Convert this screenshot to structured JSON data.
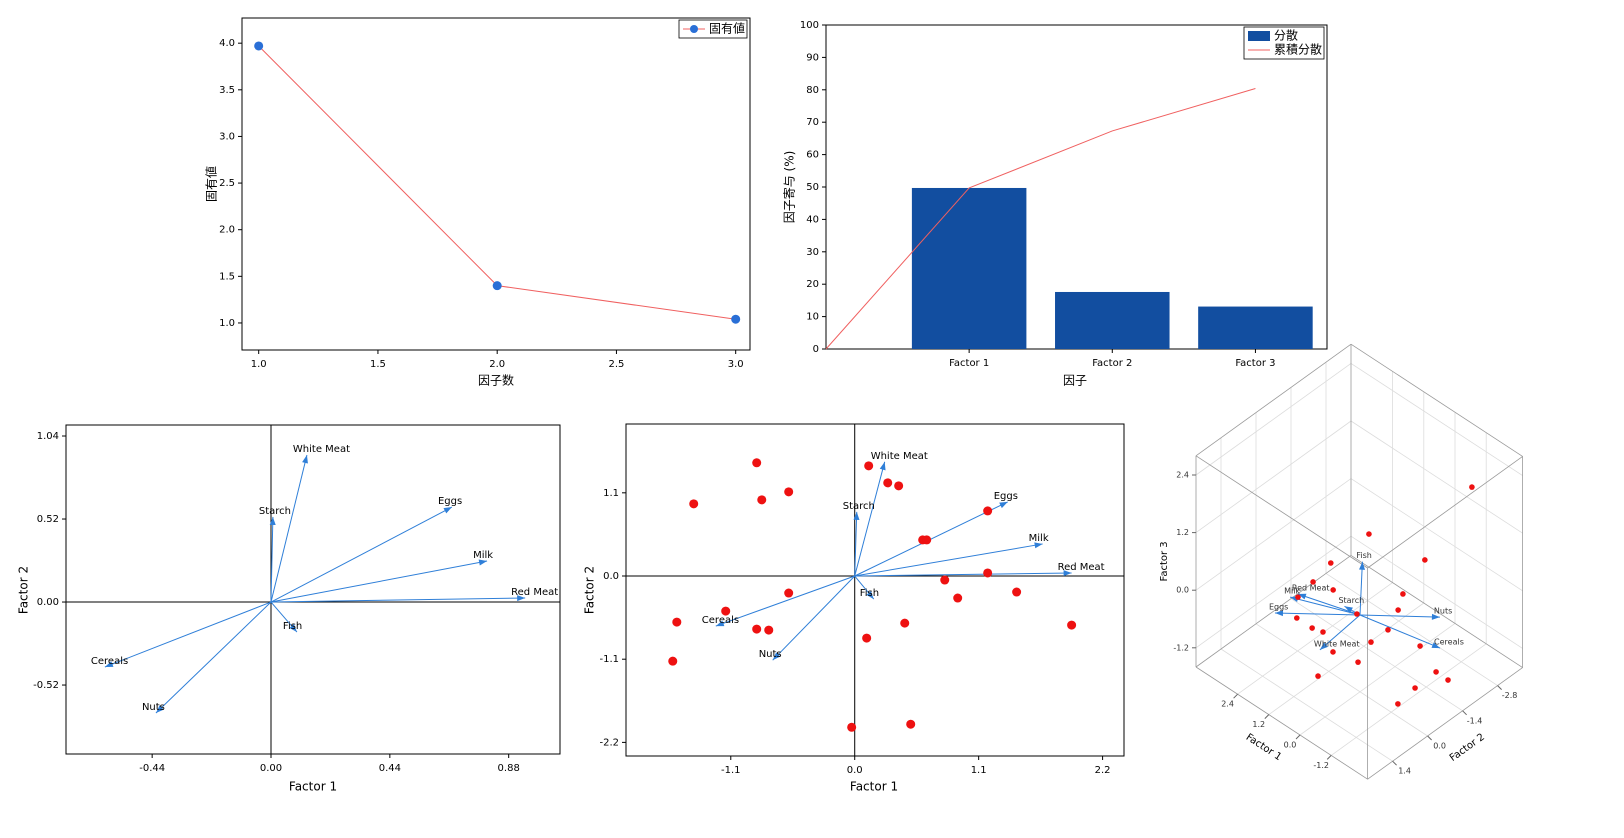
{
  "chart_data": [
    {
      "type": "line",
      "xlabel": "因子数",
      "ylabel": "固有値",
      "x": [
        1,
        2,
        3
      ],
      "series": [
        {
          "name": "固有値",
          "color": "#f06060",
          "marker_color": "#2a6fd6",
          "values": [
            3.97,
            1.4,
            1.04
          ]
        }
      ],
      "xlim": [
        0.93,
        3.06
      ],
      "xticks": [
        {
          "value": 1,
          "label": "1.0"
        },
        1.5,
        {
          "value": 2,
          "label": "2.0"
        },
        2.5,
        {
          "value": 3,
          "label": "3.0"
        }
      ],
      "ylim": [
        0.71,
        4.27
      ],
      "yticks": [
        {
          "value": 1,
          "label": "1.0"
        },
        1.5,
        {
          "value": 2,
          "label": "2.0"
        },
        2.5,
        {
          "value": 3,
          "label": "3.0"
        },
        3.5,
        {
          "value": 4,
          "label": "4.0"
        }
      ],
      "legend": "upper right"
    },
    {
      "type": "bar",
      "xlabel": "因子",
      "ylabel": "因子寄与 (%)",
      "categories": [
        null,
        "Factor 1",
        "Factor 2",
        "Factor 3"
      ],
      "series": [
        {
          "name": "分散",
          "type": "bar",
          "color": "#124ea0",
          "values": [
            null,
            49.7,
            17.6,
            13.1
          ]
        },
        {
          "name": "累積分散",
          "type": "line",
          "color": "#f06060",
          "values": [
            0,
            49.7,
            67.3,
            80.4
          ]
        }
      ],
      "ylim": [
        0,
        100
      ],
      "yticks": [
        0,
        10,
        20,
        30,
        40,
        50,
        60,
        70,
        80,
        90,
        100
      ],
      "legend": "upper right"
    },
    {
      "type": "biplot",
      "xlabel": "Factor 1",
      "ylabel": "Factor 2",
      "vector_color": "#2f7fd8",
      "vectors": [
        {
          "name": "White Meat",
          "x": 0.133,
          "y": 0.921
        },
        {
          "name": "Starch",
          "x": 0.007,
          "y": 0.533
        },
        {
          "name": "Eggs",
          "x": 0.67,
          "y": 0.595
        },
        {
          "name": "Milk",
          "x": 0.8,
          "y": 0.257
        },
        {
          "name": "Red Meat",
          "x": 0.941,
          "y": 0.025
        },
        {
          "name": "Fish",
          "x": 0.096,
          "y": -0.188
        },
        {
          "name": "Cereals",
          "x": -0.615,
          "y": -0.407
        },
        {
          "name": "Nuts",
          "x": -0.426,
          "y": -0.695
        }
      ],
      "xlim": [
        -0.759,
        1.07
      ],
      "xticks": [
        -0.44,
        {
          "value": 0,
          "label": "0.00"
        },
        0.44,
        0.88
      ],
      "ylim": [
        -0.952,
        1.109
      ],
      "yticks": [
        -0.52,
        {
          "value": 0,
          "label": "0.00"
        },
        0.52,
        1.04
      ]
    },
    {
      "type": "biplot",
      "xlabel": "Factor 1",
      "ylabel": "Factor 2",
      "vector_color": "#2f7fd8",
      "point_color": "#ee1111",
      "vectors": [
        {
          "name": "White Meat",
          "x": 0.266,
          "y": 1.51
        },
        {
          "name": "Starch",
          "x": 0.018,
          "y": 0.848
        },
        {
          "name": "Eggs",
          "x": 1.358,
          "y": 0.98
        },
        {
          "name": "Milk",
          "x": 1.668,
          "y": 0.424
        },
        {
          "name": "Red Meat",
          "x": 1.925,
          "y": 0.04
        },
        {
          "name": "Fish",
          "x": 0.169,
          "y": -0.305
        },
        {
          "name": "Cereals",
          "x": -1.233,
          "y": -0.662
        },
        {
          "name": "Nuts",
          "x": -0.728,
          "y": -1.113
        }
      ],
      "points": {
        "x": [
          -0.87,
          0.124,
          0.293,
          0.39,
          -1.429,
          -0.825,
          -0.586,
          1.18,
          0.603,
          0.639,
          1.18,
          0.799,
          0.914,
          1.437,
          1.925,
          -0.586,
          -1.145,
          -1.579,
          -0.87,
          -0.763,
          0.444,
          0.106,
          -1.615,
          -0.027,
          0.497
        ],
        "y": [
          1.497,
          1.457,
          1.232,
          1.192,
          0.954,
          1.007,
          1.113,
          0.861,
          0.477,
          0.477,
          0.04,
          -0.053,
          -0.291,
          -0.212,
          -0.649,
          -0.225,
          -0.464,
          -0.609,
          -0.702,
          -0.715,
          -0.623,
          -0.821,
          -1.126,
          -2.0,
          -1.96
        ]
      },
      "xlim": [
        -2.03,
        2.39
      ],
      "xticks": [
        -1.1,
        {
          "value": 0,
          "label": "0.0"
        },
        1.1,
        2.2
      ],
      "ylim": [
        -2.38,
        2.01
      ],
      "yticks": [
        -2.2,
        -1.1,
        {
          "value": 0,
          "label": "0.0"
        },
        1.1
      ]
    },
    {
      "type": "scatter3d",
      "xlabel": "Factor 1",
      "ylabel": "Factor 2",
      "zlabel": "Factor 3",
      "vector_color": "#2f7fd8",
      "point_color": "#ee1111",
      "vectors": [
        {
          "name": "Fish",
          "x": 0.1,
          "y": -0.2,
          "z": 1.0
        },
        {
          "name": "Red Meat",
          "x": 1.84,
          "y": 0.57,
          "z": 0
        },
        {
          "name": "Milk",
          "x": 1.91,
          "y": 0.81,
          "z": 0
        },
        {
          "name": "Starch",
          "x": 0.02,
          "y": 0.6,
          "z": 0.4
        },
        {
          "name": "Eggs",
          "x": 1.77,
          "y": 1.56,
          "z": 0
        },
        {
          "name": "Nuts",
          "x": -1.67,
          "y": -1.46,
          "z": 0
        },
        {
          "name": "Cereals",
          "x": -2.54,
          "y": -0.56,
          "z": 0
        },
        {
          "name": "White Meat",
          "x": -0.17,
          "y": 1.78,
          "z": 0
        }
      ],
      "points": {
        "x": [
          -1.9,
          0.07,
          -1.11,
          0.97,
          1.2,
          0.84,
          -0.68,
          1.75,
          -0.63,
          1.19,
          0.6,
          0.27,
          -0.98,
          -0.49,
          -0.98,
          -1.28,
          -2.08,
          -2.32,
          0.21,
          -1.81,
          -2.52,
          -1.64,
          0.09
        ],
        "y": [
          -2.5,
          -0.43,
          -1.44,
          0.16,
          0.63,
          0.2,
          -1.01,
          0.66,
          -0.87,
          1.29,
          1.29,
          1.2,
          -0.1,
          1.59,
          0.58,
          1.41,
          -0.24,
          -0.63,
          1.46,
          -0.32,
          -0.9,
          0.19,
          0.03
        ],
        "z": [
          2.4,
          1.5,
          1.0,
          0.8,
          0.5,
          0.3,
          0.3,
          0,
          0,
          0,
          0,
          0,
          0,
          0,
          0,
          0,
          0,
          -0.6,
          -0.8,
          -1.0,
          -0.8,
          -1.2,
          0
        ]
      },
      "xlim": [
        -2.6,
        4.0
      ],
      "xticks": [
        -1.2,
        {
          "value": 0,
          "label": "0.0"
        },
        1.2,
        2.4
      ],
      "ylim": [
        -3.8,
        2.4
      ],
      "yticks": [
        -2.8,
        -1.4,
        {
          "value": 0,
          "label": "0.0"
        },
        1.4
      ],
      "zlim": [
        -1.6,
        2.8
      ],
      "zticks": [
        -1.2,
        {
          "value": 0,
          "label": "0.0"
        },
        1.2,
        2.4
      ]
    }
  ]
}
